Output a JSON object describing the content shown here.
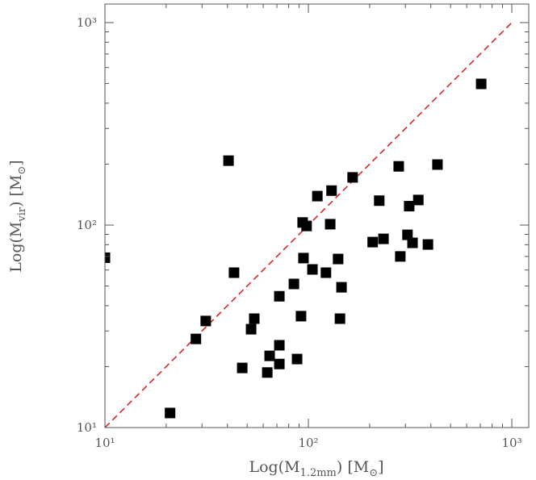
{
  "chart_data": {
    "type": "scatter",
    "x_label": [
      {
        "text": "Log(M"
      },
      {
        "text": "1.2mm",
        "sub": true
      },
      {
        "text": ") [M"
      },
      {
        "text": "⊙",
        "sub": true
      },
      {
        "text": "]"
      }
    ],
    "y_label": [
      {
        "text": "Log(M"
      },
      {
        "text": "vir",
        "sub": true
      },
      {
        "text": ")  [M"
      },
      {
        "text": "⊙",
        "sub": true
      },
      {
        "text": "]"
      }
    ],
    "x_log": true,
    "y_log": true,
    "xlim": [
      10,
      1211
    ],
    "ylim": [
      10,
      1235
    ],
    "xticks": [
      {
        "value": 10,
        "label": "10¹"
      },
      {
        "value": 100,
        "label": "10²"
      },
      {
        "value": 1000,
        "label": "10³"
      }
    ],
    "yticks": [
      {
        "value": 10,
        "label": "10¹"
      },
      {
        "value": 100,
        "label": "10²"
      },
      {
        "value": 1000,
        "label": "10³"
      }
    ],
    "xminorticks": [
      20,
      30,
      40,
      50,
      60,
      70,
      80,
      90,
      200,
      300,
      400,
      500,
      600,
      700,
      800,
      900
    ],
    "yminorticks": [
      20,
      30,
      40,
      50,
      60,
      70,
      80,
      90,
      200,
      300,
      400,
      500,
      600,
      700,
      800,
      900
    ],
    "color": "#000000",
    "reference_line": {
      "x": [
        10,
        1000
      ],
      "y": [
        10,
        1000
      ],
      "color": "#d62728"
    },
    "x": [
      10,
      20.9,
      28,
      31.3,
      40.5,
      43.1,
      47.3,
      52.3,
      54.2,
      62.8,
      64.5,
      72,
      72,
      72,
      84.9,
      88,
      92,
      93.7,
      94.6,
      98,
      104.7,
      110.7,
      122,
      128,
      130,
      140,
      143,
      145.5,
      165,
      207,
      223,
      234,
      278,
      283,
      307,
      313,
      325,
      347,
      387,
      431,
      707
    ],
    "y": [
      69,
      11.8,
      27.4,
      33.6,
      208,
      58.2,
      19.7,
      30.6,
      34.5,
      18.7,
      22.6,
      25.5,
      20.6,
      44.5,
      51.2,
      21.8,
      35.5,
      103,
      68.7,
      99,
      60.4,
      139,
      58.2,
      101,
      148,
      68,
      34.5,
      49.3,
      172,
      82.4,
      132,
      85.5,
      195,
      70,
      89.5,
      124,
      81.7,
      133,
      80.2,
      199,
      498
    ]
  }
}
